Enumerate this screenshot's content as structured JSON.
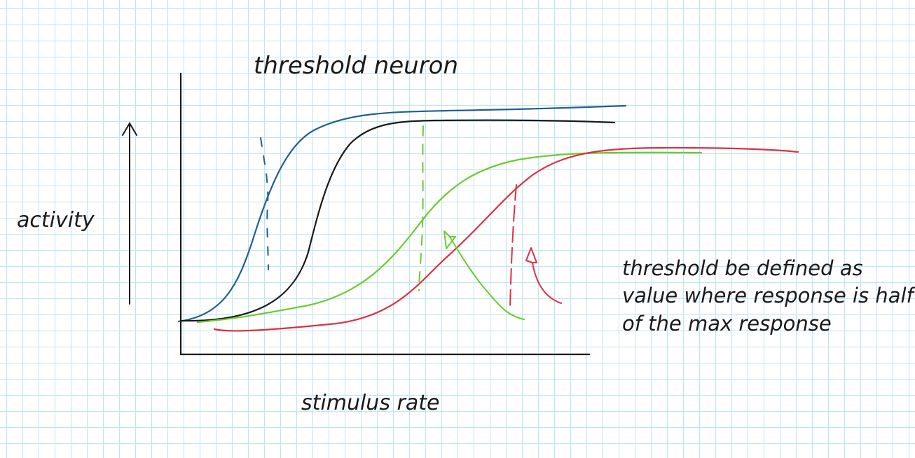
{
  "title": "threshold neuron",
  "xlabel": "stimulus rate",
  "ylabel": "activity",
  "note": {
    "lines": [
      "threshold be defined as",
      "value where response is half",
      "of the max response"
    ]
  },
  "colors": {
    "ink": "#1a1a1a",
    "blue": "#1f5f95",
    "black": "#1a1a1a",
    "green": "#6acc2a",
    "red": "#e0303d",
    "grid": "#bfe3f7"
  },
  "curves": [
    {
      "color": "blue"
    },
    {
      "color": "black"
    },
    {
      "color": "green"
    },
    {
      "color": "red"
    }
  ]
}
